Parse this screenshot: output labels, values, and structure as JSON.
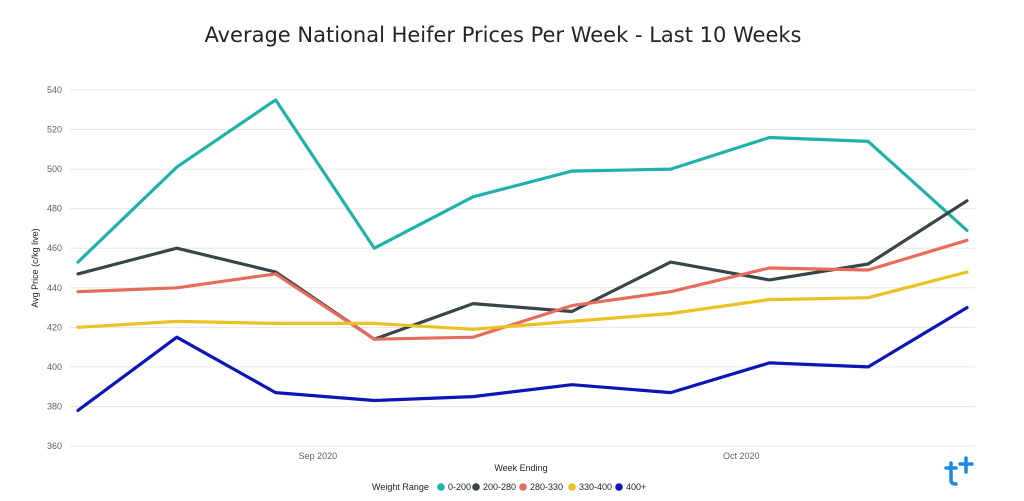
{
  "chart_data": {
    "type": "line",
    "title": "Average National Heifer Prices Per Week - Last 10 Weeks",
    "xlabel": "Week Ending",
    "ylabel": "Avg Price (c/kg live)",
    "ylim": [
      360,
      540
    ],
    "yticks": [
      540,
      520,
      500,
      480,
      460,
      440,
      420,
      400,
      380,
      360
    ],
    "x": [
      "2020-08-15",
      "2020-08-22",
      "2020-08-29",
      "2020-09-05",
      "2020-09-12",
      "2020-09-19",
      "2020-09-26",
      "2020-10-03",
      "2020-10-10",
      "2020-10-17"
    ],
    "xtick_labels": [
      {
        "label": "Sep 2020",
        "at": "2020-09-01"
      },
      {
        "label": "Oct 2020",
        "at": "2020-10-01"
      }
    ],
    "grid": true,
    "legend": {
      "title": "Weight Range",
      "position": "bottom"
    },
    "series": [
      {
        "name": "0-200",
        "color": "#20b2aa",
        "values": [
          453,
          501,
          535,
          460,
          486,
          499,
          500,
          516,
          514,
          469
        ]
      },
      {
        "name": "200-280",
        "color": "#374649",
        "values": [
          447,
          460,
          448,
          414,
          432,
          428,
          453,
          444,
          452,
          484
        ]
      },
      {
        "name": "280-330",
        "color": "#e66c5c",
        "values": [
          438,
          440,
          447,
          414,
          415,
          431,
          438,
          450,
          449,
          464
        ]
      },
      {
        "name": "330-400",
        "color": "#ebc123",
        "values": [
          420,
          423,
          422,
          422,
          419,
          423,
          427,
          434,
          435,
          448
        ]
      },
      {
        "name": "400+",
        "color": "#0c15b7",
        "values": [
          378,
          415,
          387,
          383,
          385,
          391,
          387,
          402,
          400,
          430
        ]
      }
    ]
  },
  "logo": {
    "name": "tt-logo-icon",
    "color": "#1e88e5"
  }
}
